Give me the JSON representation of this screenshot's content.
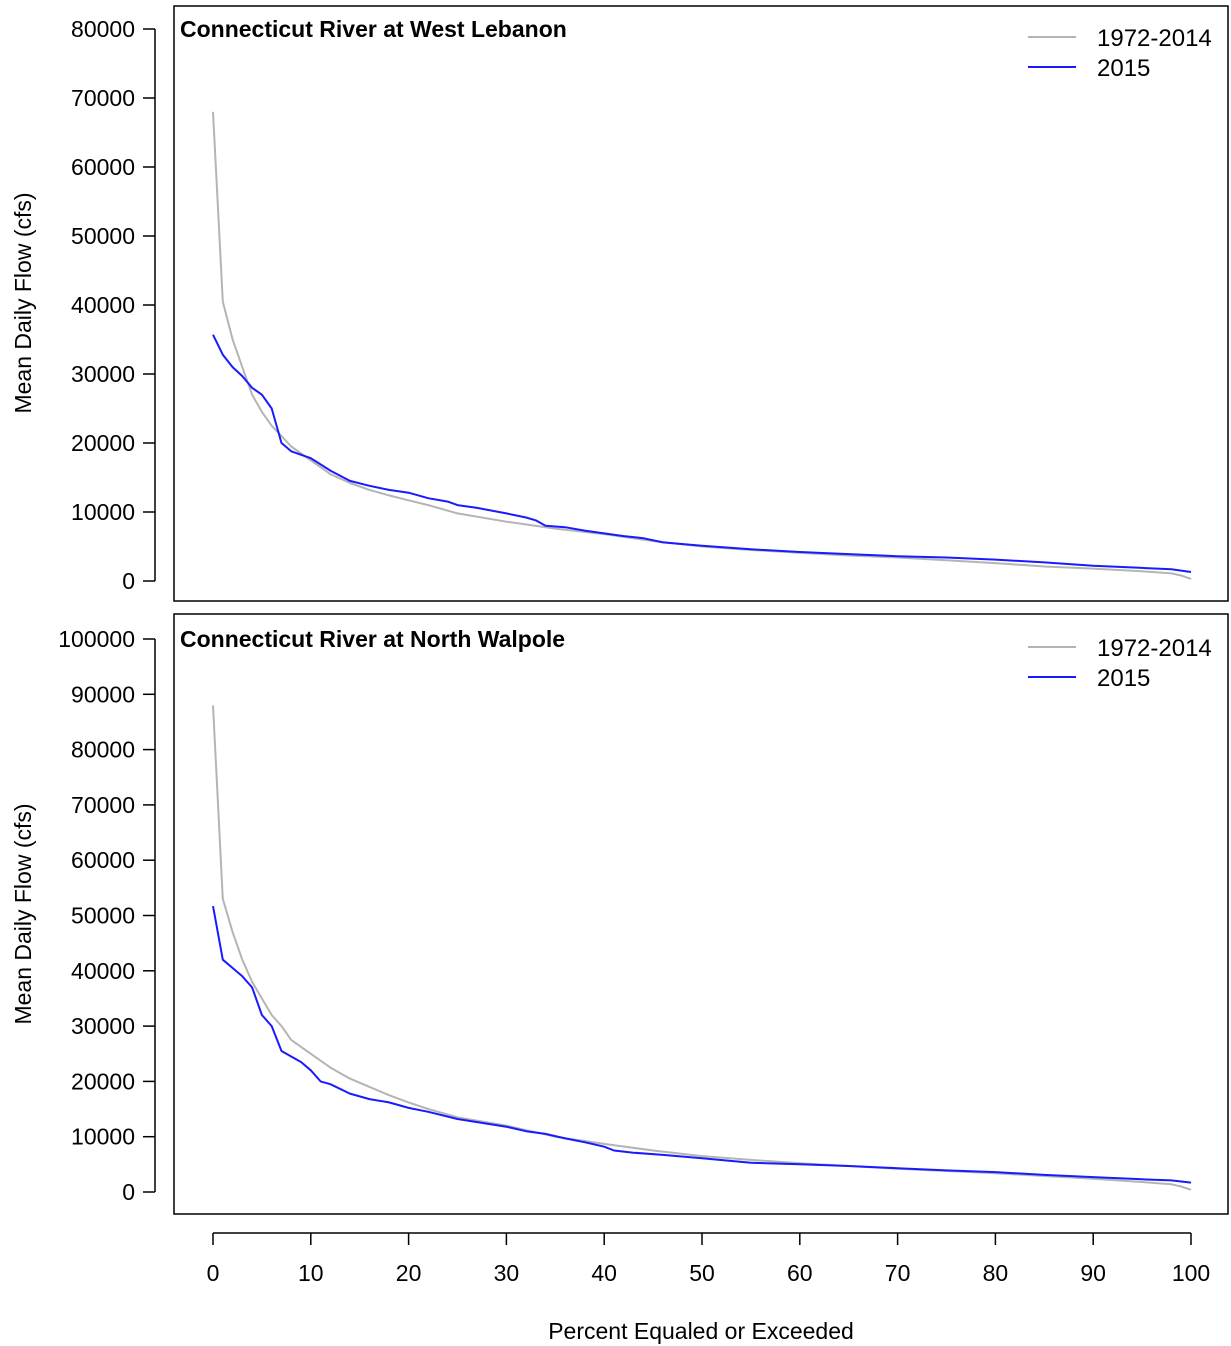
{
  "chart_data": [
    {
      "type": "line",
      "title": "Connecticut River at West Lebanon",
      "xlabel": "Percent Equaled or Exceeded",
      "ylabel": "Mean Daily Flow (cfs)",
      "xlim": [
        0,
        100
      ],
      "ylim": [
        0,
        80000
      ],
      "yticks": [
        0,
        10000,
        20000,
        30000,
        40000,
        50000,
        60000,
        70000,
        80000
      ],
      "xticks": [
        0,
        10,
        20,
        30,
        40,
        50,
        60,
        70,
        80,
        90,
        100
      ],
      "legend_position": "top-right",
      "series": [
        {
          "name": "1972-2014",
          "color": "#b4b4b4",
          "x": [
            0,
            1,
            2,
            3,
            4,
            5,
            6,
            7,
            8,
            10,
            12,
            14,
            16,
            18,
            20,
            22,
            25,
            30,
            35,
            40,
            45,
            50,
            55,
            60,
            65,
            70,
            75,
            80,
            85,
            90,
            95,
            98,
            99,
            100
          ],
          "y": [
            68000,
            40500,
            35000,
            31000,
            27000,
            24500,
            22500,
            21000,
            19500,
            17500,
            15500,
            14200,
            13200,
            12400,
            11700,
            11000,
            9800,
            8600,
            7600,
            6800,
            5800,
            5000,
            4500,
            4100,
            3700,
            3400,
            3000,
            2600,
            2100,
            1800,
            1400,
            1100,
            800,
            300
          ]
        },
        {
          "name": "2015",
          "color": "#1a1aff",
          "x": [
            0,
            1,
            2,
            3,
            4,
            5,
            6,
            7,
            8,
            10,
            12,
            14,
            16,
            18,
            20,
            22,
            24,
            25,
            27,
            30,
            32,
            33,
            34,
            36,
            38,
            40,
            42,
            44,
            46,
            50,
            55,
            60,
            65,
            70,
            75,
            80,
            85,
            90,
            95,
            98,
            100
          ],
          "y": [
            35700,
            32800,
            31000,
            29700,
            28000,
            27000,
            25000,
            20000,
            18800,
            17800,
            16000,
            14500,
            13800,
            13200,
            12800,
            12000,
            11500,
            11000,
            10600,
            9800,
            9200,
            8800,
            8000,
            7800,
            7300,
            6900,
            6500,
            6200,
            5600,
            5100,
            4600,
            4200,
            3900,
            3600,
            3400,
            3100,
            2700,
            2200,
            1900,
            1700,
            1300
          ]
        }
      ]
    },
    {
      "type": "line",
      "title": "Connecticut River at North Walpole",
      "xlabel": "Percent Equaled or Exceeded",
      "ylabel": "Mean Daily Flow (cfs)",
      "xlim": [
        0,
        100
      ],
      "ylim": [
        0,
        100000
      ],
      "yticks": [
        0,
        10000,
        20000,
        30000,
        40000,
        50000,
        60000,
        70000,
        80000,
        90000,
        100000
      ],
      "xticks": [
        0,
        10,
        20,
        30,
        40,
        50,
        60,
        70,
        80,
        90,
        100
      ],
      "legend_position": "top-right",
      "series": [
        {
          "name": "1972-2014",
          "color": "#b4b4b4",
          "x": [
            0,
            1,
            2,
            3,
            4,
            5,
            6,
            7,
            8,
            10,
            12,
            14,
            16,
            18,
            20,
            22,
            25,
            30,
            35,
            40,
            45,
            50,
            55,
            60,
            65,
            70,
            75,
            80,
            85,
            90,
            95,
            98,
            99,
            100
          ],
          "y": [
            88000,
            53000,
            47000,
            42000,
            38000,
            35000,
            32000,
            30000,
            27500,
            25000,
            22500,
            20500,
            19000,
            17500,
            16200,
            15000,
            13500,
            12000,
            10000,
            8700,
            7500,
            6500,
            5800,
            5200,
            4700,
            4200,
            3800,
            3400,
            2900,
            2400,
            1800,
            1400,
            1000,
            400
          ]
        },
        {
          "name": "2015",
          "color": "#1a1aff",
          "x": [
            0,
            1,
            2,
            3,
            4,
            5,
            6,
            7,
            8,
            9,
            10,
            11,
            12,
            14,
            16,
            18,
            20,
            22,
            25,
            30,
            32,
            34,
            36,
            38,
            40,
            41,
            43,
            46,
            50,
            55,
            60,
            65,
            70,
            75,
            80,
            85,
            90,
            95,
            98,
            100
          ],
          "y": [
            51700,
            42000,
            40500,
            39000,
            37000,
            32000,
            30000,
            25500,
            24500,
            23500,
            22000,
            20000,
            19500,
            17800,
            16800,
            16200,
            15200,
            14500,
            13200,
            11800,
            11000,
            10500,
            9700,
            9000,
            8200,
            7500,
            7100,
            6700,
            6100,
            5300,
            5000,
            4700,
            4300,
            3900,
            3600,
            3100,
            2700,
            2300,
            2100,
            1700
          ]
        }
      ]
    }
  ]
}
